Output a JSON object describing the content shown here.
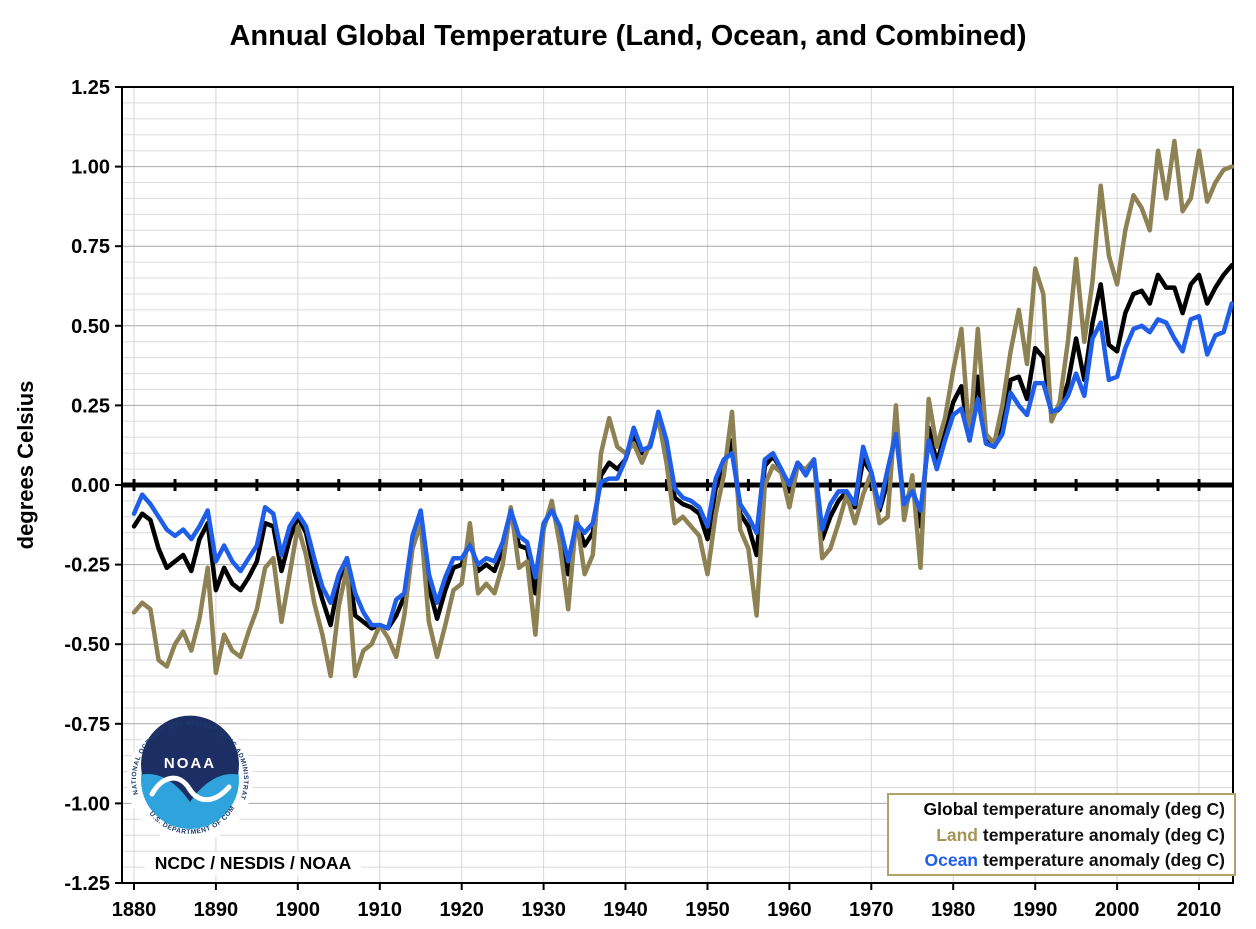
{
  "title": "Annual Global Temperature (Land, Ocean, and Combined)",
  "y_axis_label": "degrees Celsius",
  "credit": "NCDC / NESDIS / NOAA",
  "logo": {
    "center_text": "NOAA",
    "ring_top": "NATIONAL OCEANIC AND ATMOSPHERIC ADMINISTRATION",
    "ring_bottom": "U.S. DEPARTMENT OF COMMERCE"
  },
  "legend": {
    "entries": [
      {
        "series": "Global",
        "rest": " temperature anomaly (deg C)",
        "color": "#000000"
      },
      {
        "series": "Land",
        "rest": " temperature anomaly (deg C)",
        "color": "#a59458"
      },
      {
        "series": "Ocean",
        "rest": " temperature anomaly (deg C)",
        "color": "#1f5ee8"
      }
    ]
  },
  "chart_data": {
    "type": "line",
    "title": "Annual Global Temperature (Land, Ocean, and Combined)",
    "xlabel": "",
    "ylabel": "degrees Celsius",
    "x_start": 1880,
    "x_end": 2014,
    "xlim": [
      1880,
      2014
    ],
    "ylim": [
      -1.25,
      1.25
    ],
    "x_ticks": [
      1880,
      1890,
      1900,
      1910,
      1920,
      1930,
      1940,
      1950,
      1960,
      1970,
      1980,
      1990,
      2000,
      2010
    ],
    "y_ticks": [
      "1.25",
      "1.00",
      "0.75",
      "0.50",
      "0.25",
      "0.00",
      "-0.25",
      "-0.50",
      "-0.75",
      "-1.00",
      "-1.25"
    ],
    "grid": {
      "horizontal_minor_step": 0.05,
      "horizontal_major_step": 0.25,
      "vertical_step_years": 10
    },
    "legend_position": "bottom-right",
    "series": [
      {
        "name": "Global temperature anomaly (deg C)",
        "short": "Global",
        "color": "#000000",
        "values": [
          -0.13,
          -0.09,
          -0.11,
          -0.2,
          -0.26,
          -0.24,
          -0.22,
          -0.27,
          -0.17,
          -0.12,
          -0.33,
          -0.26,
          -0.31,
          -0.33,
          -0.29,
          -0.24,
          -0.12,
          -0.13,
          -0.27,
          -0.17,
          -0.1,
          -0.15,
          -0.27,
          -0.36,
          -0.44,
          -0.3,
          -0.23,
          -0.41,
          -0.43,
          -0.45,
          -0.44,
          -0.45,
          -0.41,
          -0.35,
          -0.17,
          -0.09,
          -0.32,
          -0.42,
          -0.33,
          -0.26,
          -0.25,
          -0.17,
          -0.27,
          -0.25,
          -0.27,
          -0.2,
          -0.08,
          -0.19,
          -0.2,
          -0.34,
          -0.13,
          -0.07,
          -0.15,
          -0.28,
          -0.11,
          -0.19,
          -0.15,
          0.03,
          0.07,
          0.05,
          0.08,
          0.16,
          0.1,
          0.12,
          0.22,
          0.12,
          -0.04,
          -0.06,
          -0.07,
          -0.09,
          -0.17,
          -0.01,
          0.06,
          0.14,
          -0.09,
          -0.13,
          -0.22,
          0.06,
          0.09,
          0.05,
          -0.02,
          0.07,
          0.04,
          0.08,
          -0.17,
          -0.1,
          -0.05,
          -0.02,
          -0.07,
          0.08,
          0.04,
          -0.08,
          0.01,
          0.19,
          -0.07,
          0.0,
          -0.13,
          0.18,
          0.07,
          0.16,
          0.26,
          0.31,
          0.14,
          0.34,
          0.14,
          0.12,
          0.18,
          0.33,
          0.34,
          0.27,
          0.43,
          0.4,
          0.22,
          0.24,
          0.32,
          0.46,
          0.33,
          0.51,
          0.63,
          0.44,
          0.42,
          0.54,
          0.6,
          0.61,
          0.57,
          0.66,
          0.62,
          0.62,
          0.54,
          0.63,
          0.66,
          0.57,
          0.62,
          0.66,
          0.69
        ]
      },
      {
        "name": "Land temperature anomaly (deg C)",
        "short": "Land",
        "color": "#8e8254",
        "values": [
          -0.4,
          -0.37,
          -0.39,
          -0.55,
          -0.57,
          -0.5,
          -0.46,
          -0.52,
          -0.42,
          -0.26,
          -0.59,
          -0.47,
          -0.52,
          -0.54,
          -0.46,
          -0.39,
          -0.26,
          -0.23,
          -0.43,
          -0.28,
          -0.13,
          -0.22,
          -0.37,
          -0.47,
          -0.6,
          -0.38,
          -0.26,
          -0.6,
          -0.52,
          -0.5,
          -0.44,
          -0.48,
          -0.54,
          -0.41,
          -0.2,
          -0.12,
          -0.43,
          -0.54,
          -0.44,
          -0.33,
          -0.31,
          -0.12,
          -0.34,
          -0.31,
          -0.34,
          -0.25,
          -0.07,
          -0.26,
          -0.24,
          -0.47,
          -0.14,
          -0.05,
          -0.19,
          -0.39,
          -0.1,
          -0.28,
          -0.22,
          0.1,
          0.21,
          0.12,
          0.1,
          0.13,
          0.07,
          0.13,
          0.21,
          0.07,
          -0.12,
          -0.1,
          -0.13,
          -0.16,
          -0.28,
          -0.09,
          0.03,
          0.23,
          -0.14,
          -0.2,
          -0.41,
          0.0,
          0.06,
          0.04,
          -0.07,
          0.06,
          0.05,
          0.08,
          -0.23,
          -0.2,
          -0.12,
          -0.03,
          -0.12,
          -0.03,
          0.04,
          -0.12,
          -0.1,
          0.25,
          -0.11,
          0.03,
          -0.26,
          0.27,
          0.12,
          0.21,
          0.36,
          0.49,
          0.14,
          0.49,
          0.16,
          0.13,
          0.25,
          0.42,
          0.55,
          0.38,
          0.68,
          0.6,
          0.2,
          0.26,
          0.45,
          0.71,
          0.45,
          0.64,
          0.94,
          0.72,
          0.63,
          0.8,
          0.91,
          0.87,
          0.8,
          1.05,
          0.9,
          1.08,
          0.86,
          0.9,
          1.05,
          0.89,
          0.95,
          0.99,
          1.0
        ]
      },
      {
        "name": "Ocean temperature anomaly (deg C)",
        "short": "Ocean",
        "color": "#1f5ee8",
        "values": [
          -0.09,
          -0.03,
          -0.06,
          -0.1,
          -0.14,
          -0.16,
          -0.14,
          -0.17,
          -0.13,
          -0.08,
          -0.24,
          -0.19,
          -0.24,
          -0.27,
          -0.23,
          -0.19,
          -0.07,
          -0.09,
          -0.22,
          -0.13,
          -0.09,
          -0.13,
          -0.23,
          -0.32,
          -0.37,
          -0.28,
          -0.23,
          -0.34,
          -0.4,
          -0.44,
          -0.44,
          -0.45,
          -0.36,
          -0.34,
          -0.16,
          -0.08,
          -0.28,
          -0.37,
          -0.29,
          -0.23,
          -0.23,
          -0.19,
          -0.25,
          -0.23,
          -0.24,
          -0.18,
          -0.08,
          -0.16,
          -0.18,
          -0.29,
          -0.12,
          -0.08,
          -0.13,
          -0.24,
          -0.12,
          -0.15,
          -0.12,
          0.01,
          0.02,
          0.02,
          0.08,
          0.18,
          0.11,
          0.12,
          0.23,
          0.14,
          -0.01,
          -0.04,
          -0.05,
          -0.07,
          -0.13,
          0.02,
          0.08,
          0.1,
          -0.06,
          -0.1,
          -0.15,
          0.08,
          0.1,
          0.05,
          0.0,
          0.07,
          0.03,
          0.08,
          -0.14,
          -0.06,
          -0.02,
          -0.02,
          -0.06,
          0.12,
          0.04,
          -0.07,
          0.05,
          0.16,
          -0.06,
          -0.02,
          -0.08,
          0.14,
          0.05,
          0.14,
          0.22,
          0.24,
          0.14,
          0.27,
          0.13,
          0.12,
          0.16,
          0.29,
          0.25,
          0.22,
          0.32,
          0.32,
          0.23,
          0.24,
          0.28,
          0.35,
          0.28,
          0.46,
          0.51,
          0.33,
          0.34,
          0.43,
          0.49,
          0.5,
          0.48,
          0.52,
          0.51,
          0.46,
          0.42,
          0.52,
          0.53,
          0.41,
          0.47,
          0.48,
          0.57
        ]
      }
    ]
  }
}
